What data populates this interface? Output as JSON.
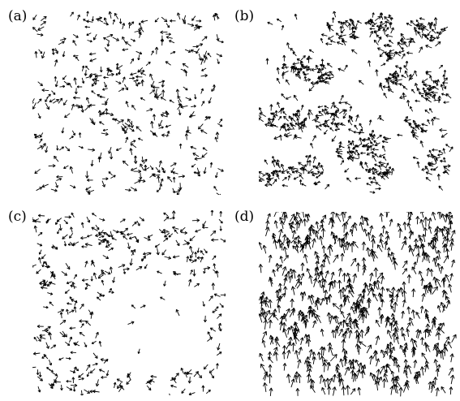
{
  "figure": {
    "panels": [
      {
        "label": "(a)",
        "pattern": "disordered-uniform",
        "heading_deg": null,
        "spread_deg": 180,
        "count": 360,
        "seed": 11
      },
      {
        "label": "(b)",
        "pattern": "clustered-flocks",
        "heading_deg": 135,
        "spread_deg": 50,
        "count": 620,
        "seed": 23
      },
      {
        "label": "(c)",
        "pattern": "disordered-with-void",
        "heading_deg": null,
        "spread_deg": 180,
        "count": 330,
        "seed": 37
      },
      {
        "label": "(d)",
        "pattern": "polar-ordered-upward",
        "heading_deg": 90,
        "spread_deg": 18,
        "count": 700,
        "seed": 51
      }
    ],
    "colors": {
      "arrow": "#000000",
      "background": "#ffffff"
    }
  }
}
